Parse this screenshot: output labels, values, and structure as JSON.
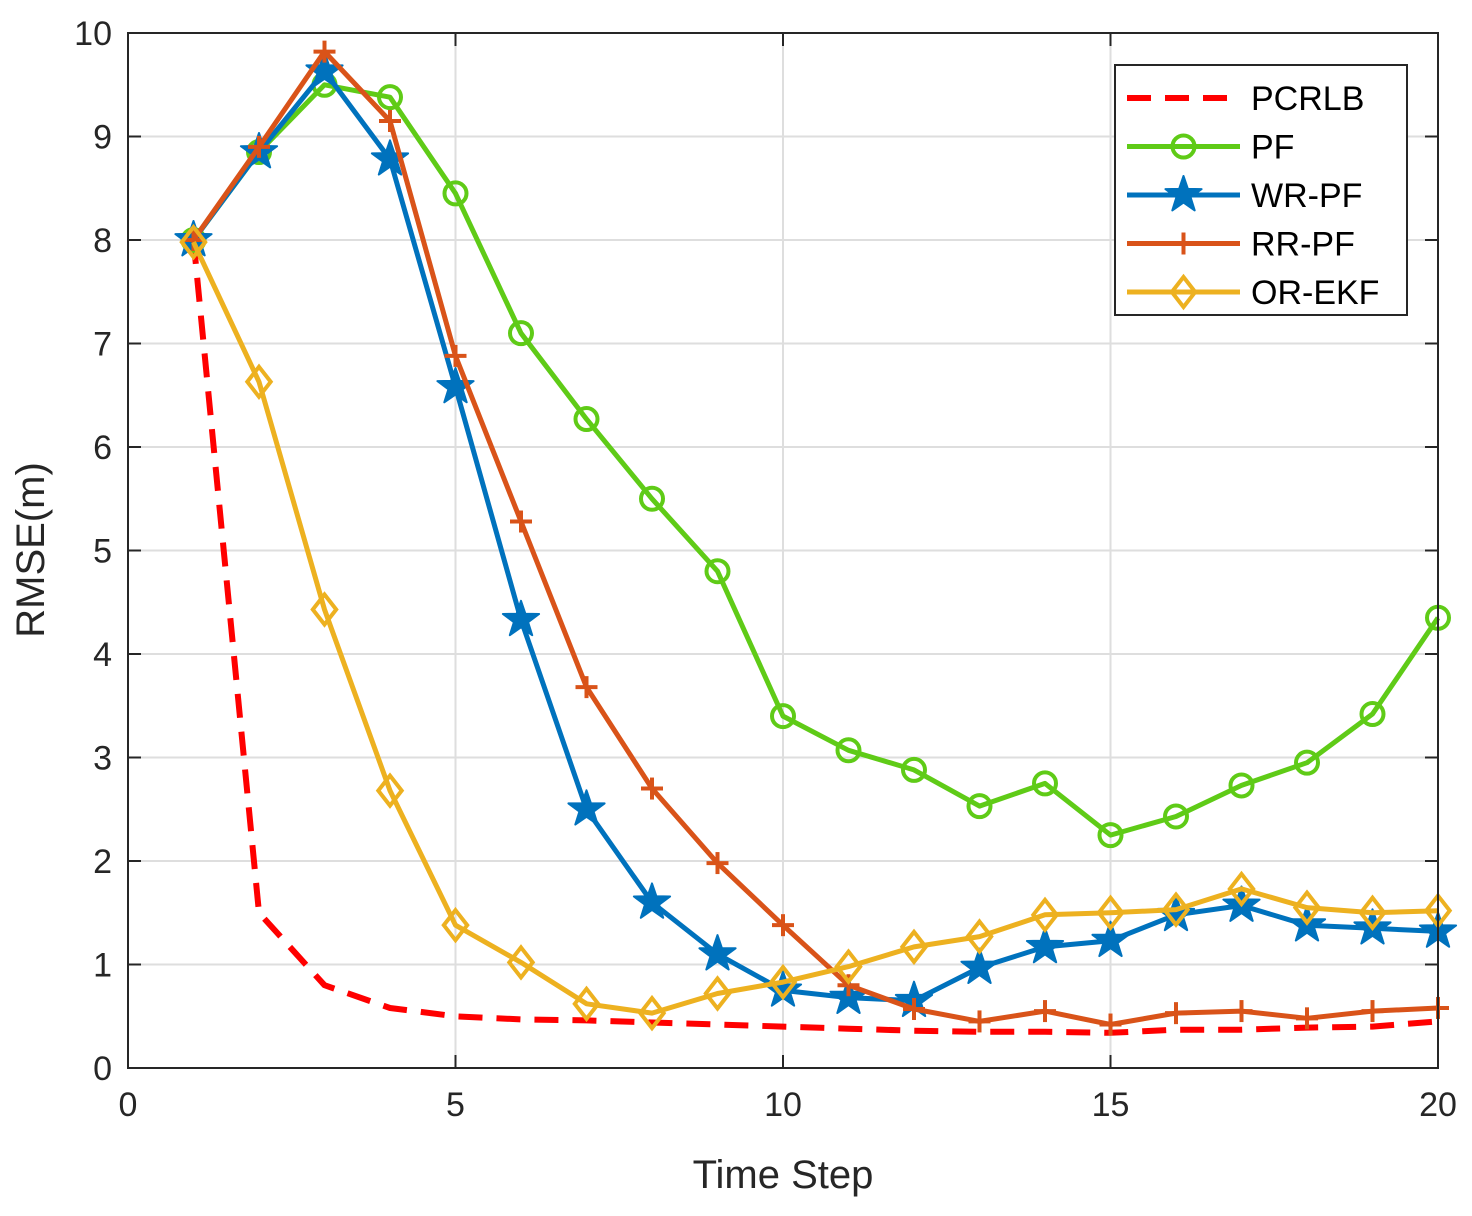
{
  "chart_data": {
    "type": "line",
    "xlabel": "Time Step",
    "ylabel": "RMSE(m)",
    "xlim": [
      0,
      20
    ],
    "ylim": [
      0,
      10
    ],
    "xticks": [
      0,
      5,
      10,
      15,
      20
    ],
    "yticks": [
      0,
      1,
      2,
      3,
      4,
      5,
      6,
      7,
      8,
      9,
      10
    ],
    "grid": true,
    "legend_position": "top-right",
    "x": [
      1,
      2,
      3,
      4,
      5,
      6,
      7,
      8,
      9,
      10,
      11,
      12,
      13,
      14,
      15,
      16,
      17,
      18,
      19,
      20
    ],
    "series": [
      {
        "name": "PCRLB",
        "color": "#ff0000",
        "dash": true,
        "marker": "none",
        "values": [
          8.0,
          1.5,
          0.8,
          0.58,
          0.5,
          0.47,
          0.46,
          0.44,
          0.42,
          0.4,
          0.38,
          0.36,
          0.35,
          0.35,
          0.34,
          0.37,
          0.37,
          0.39,
          0.4,
          0.45
        ]
      },
      {
        "name": "PF",
        "color": "#5fcb17",
        "dash": false,
        "marker": "circle",
        "values": [
          8.0,
          8.85,
          9.5,
          9.38,
          8.45,
          7.1,
          6.27,
          5.5,
          4.8,
          3.4,
          3.07,
          2.88,
          2.53,
          2.75,
          2.25,
          2.43,
          2.73,
          2.95,
          3.42,
          4.35
        ]
      },
      {
        "name": "WR-PF",
        "color": "#0072bd",
        "dash": false,
        "marker": "star",
        "values": [
          8.0,
          8.85,
          9.63,
          8.78,
          6.58,
          4.33,
          2.5,
          1.6,
          1.1,
          0.75,
          0.68,
          0.65,
          0.97,
          1.17,
          1.23,
          1.48,
          1.57,
          1.38,
          1.35,
          1.32
        ]
      },
      {
        "name": "RR-PF",
        "color": "#d95319",
        "dash": false,
        "marker": "plus",
        "values": [
          8.0,
          8.9,
          9.82,
          9.15,
          6.88,
          5.28,
          3.68,
          2.7,
          1.98,
          1.38,
          0.8,
          0.57,
          0.45,
          0.55,
          0.42,
          0.53,
          0.55,
          0.48,
          0.55,
          0.58
        ]
      },
      {
        "name": "OR-EKF",
        "color": "#edb120",
        "dash": false,
        "marker": "diamond",
        "values": [
          7.98,
          6.63,
          4.43,
          2.68,
          1.38,
          1.02,
          0.62,
          0.53,
          0.72,
          0.83,
          0.98,
          1.17,
          1.27,
          1.48,
          1.5,
          1.53,
          1.73,
          1.55,
          1.5,
          1.52
        ]
      }
    ]
  }
}
